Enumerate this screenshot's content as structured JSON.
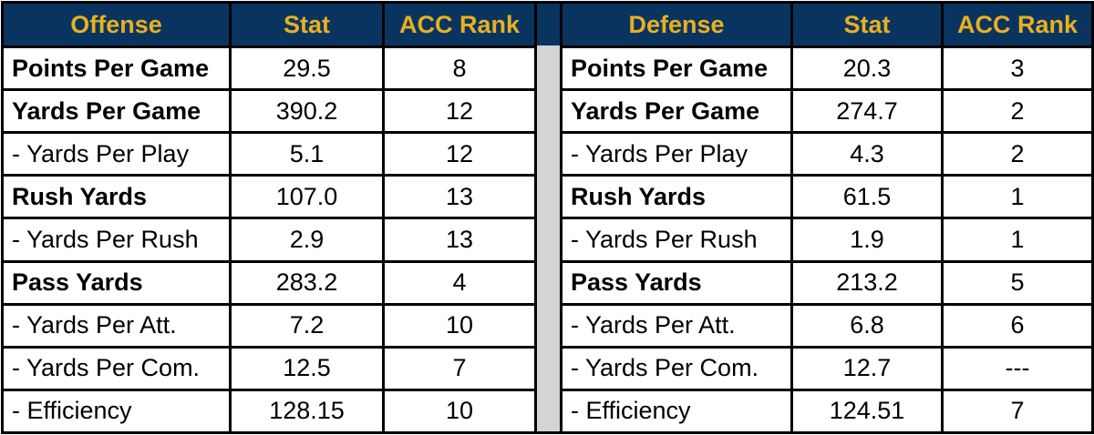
{
  "offense": {
    "headers": [
      "Offense",
      "Stat",
      "ACC Rank"
    ],
    "rows": [
      {
        "label": "Points Per Game",
        "stat": "29.5",
        "rank": "8",
        "bold": true
      },
      {
        "label": "Yards Per Game",
        "stat": "390.2",
        "rank": "12",
        "bold": true
      },
      {
        "label": "- Yards Per Play",
        "stat": "5.1",
        "rank": "12",
        "bold": false
      },
      {
        "label": "Rush Yards",
        "stat": "107.0",
        "rank": "13",
        "bold": true
      },
      {
        "label": "- Yards Per Rush",
        "stat": "2.9",
        "rank": "13",
        "bold": false
      },
      {
        "label": "Pass Yards",
        "stat": "283.2",
        "rank": "4",
        "bold": true
      },
      {
        "label": "- Yards Per Att.",
        "stat": "7.2",
        "rank": "10",
        "bold": false
      },
      {
        "label": "- Yards Per Com.",
        "stat": "12.5",
        "rank": "7",
        "bold": false
      },
      {
        "label": "- Efficiency",
        "stat": "128.15",
        "rank": "10",
        "bold": false
      }
    ]
  },
  "defense": {
    "headers": [
      "Defense",
      "Stat",
      "ACC Rank"
    ],
    "rows": [
      {
        "label": "Points Per Game",
        "stat": "20.3",
        "rank": "3",
        "bold": true
      },
      {
        "label": "Yards Per Game",
        "stat": "274.7",
        "rank": "2",
        "bold": true
      },
      {
        "label": "- Yards Per Play",
        "stat": "4.3",
        "rank": "2",
        "bold": false
      },
      {
        "label": "Rush Yards",
        "stat": "61.5",
        "rank": "1",
        "bold": true
      },
      {
        "label": "- Yards Per Rush",
        "stat": "1.9",
        "rank": "1",
        "bold": false
      },
      {
        "label": "Pass Yards",
        "stat": "213.2",
        "rank": "5",
        "bold": true
      },
      {
        "label": "- Yards Per Att.",
        "stat": "6.8",
        "rank": "6",
        "bold": false
      },
      {
        "label": "- Yards Per Com.",
        "stat": "12.7",
        "rank": "---",
        "bold": false
      },
      {
        "label": "- Efficiency",
        "stat": "124.51",
        "rank": "7",
        "bold": false
      }
    ]
  },
  "colors": {
    "header_bg": "#0a3460",
    "header_text": "#e8b020",
    "gap": "#d4d4d4"
  }
}
